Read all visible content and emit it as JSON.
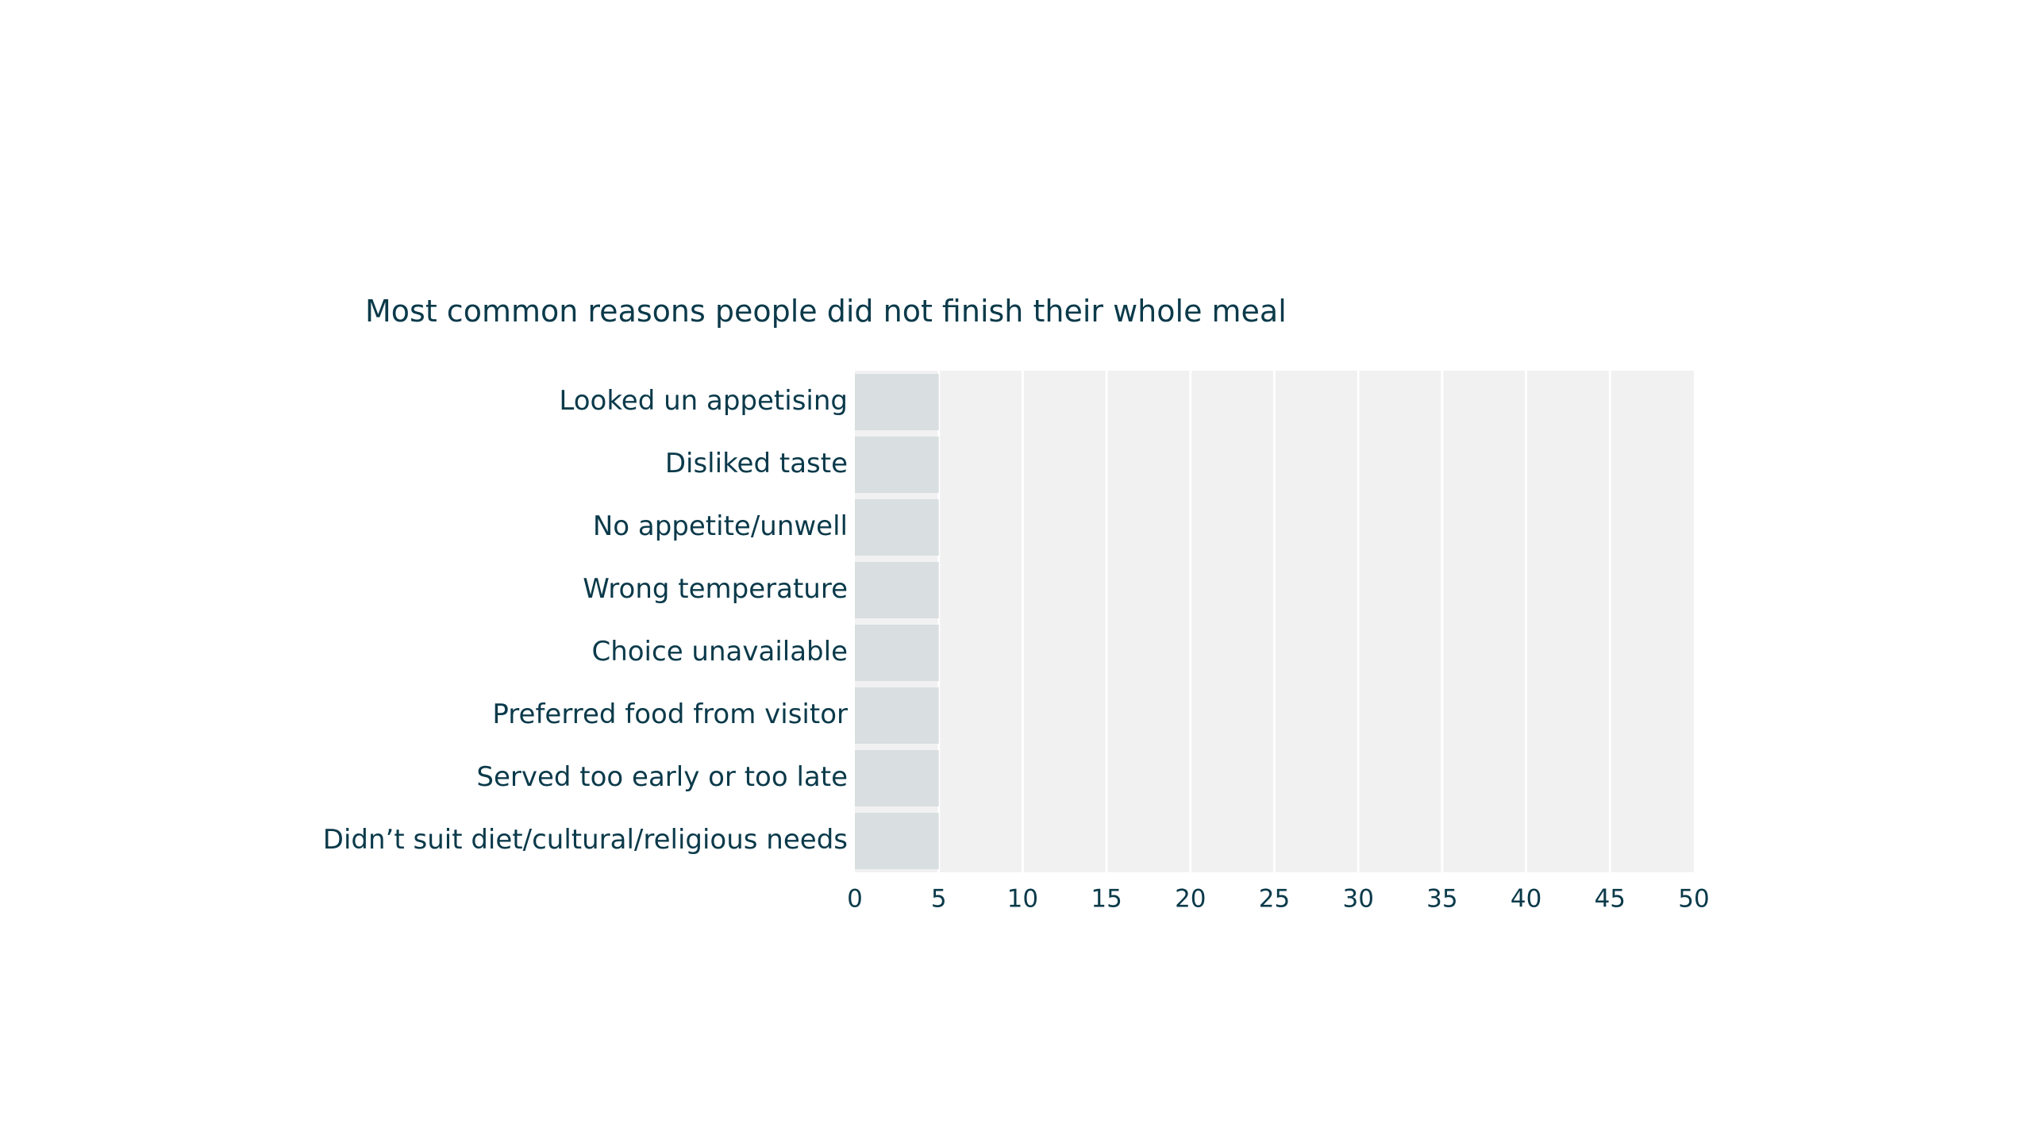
{
  "chart_data": {
    "type": "bar",
    "orientation": "horizontal",
    "title": "Most common reasons people did not finish their whole meal",
    "categories": [
      "Looked un appetising",
      "Disliked taste",
      "No appetite/unwell",
      "Wrong temperature",
      "Choice unavailable",
      "Preferred food from visitor",
      "Served too early or too late",
      "Didn’t suit diet/cultural/religious needs"
    ],
    "values": [
      5,
      5,
      5,
      5,
      5,
      5,
      5,
      5
    ],
    "xlim": [
      0,
      50
    ],
    "xticks": [
      0,
      5,
      10,
      15,
      20,
      25,
      30,
      35,
      40,
      45,
      50
    ],
    "xlabel": "",
    "ylabel": "",
    "grid": true,
    "colors": {
      "text": "#0b3a4a",
      "bar": "#d9dfe1",
      "plot_background": "#f1f1f1",
      "gridline": "#ffffff"
    }
  }
}
